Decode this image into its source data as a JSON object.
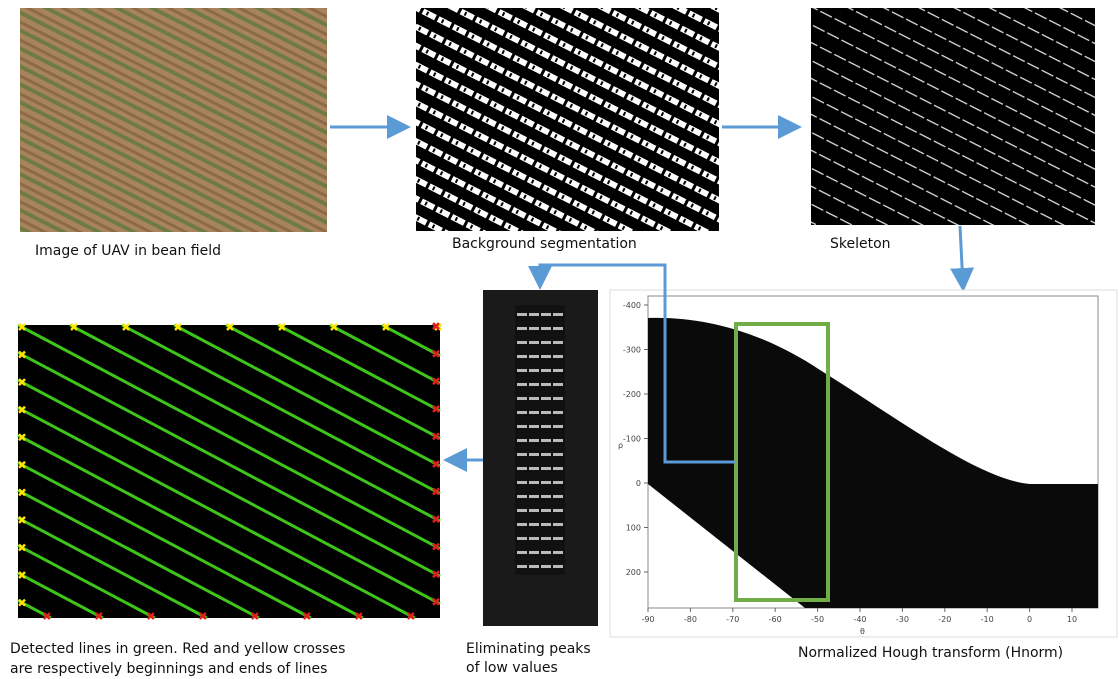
{
  "captions": {
    "uav": "Image of UAV in bean field",
    "segmentation": "Background segmentation",
    "skeleton": "Skeleton",
    "hough": "Normalized Hough transform (Hnorm)",
    "peaks": [
      "Eliminating peaks",
      "of low values"
    ],
    "detected": [
      "Detected lines in green. Red and yellow crosses",
      "are respectively beginnings and ends of lines"
    ]
  },
  "hough_plot": {
    "xlabel": "θ",
    "ylabel": "ρ",
    "xticks": [
      -90,
      -80,
      -70,
      -60,
      -50,
      -40,
      -30,
      -20,
      -10,
      0,
      10
    ],
    "yticks": [
      -400,
      -300,
      -200,
      -100,
      0,
      100,
      200
    ]
  }
}
